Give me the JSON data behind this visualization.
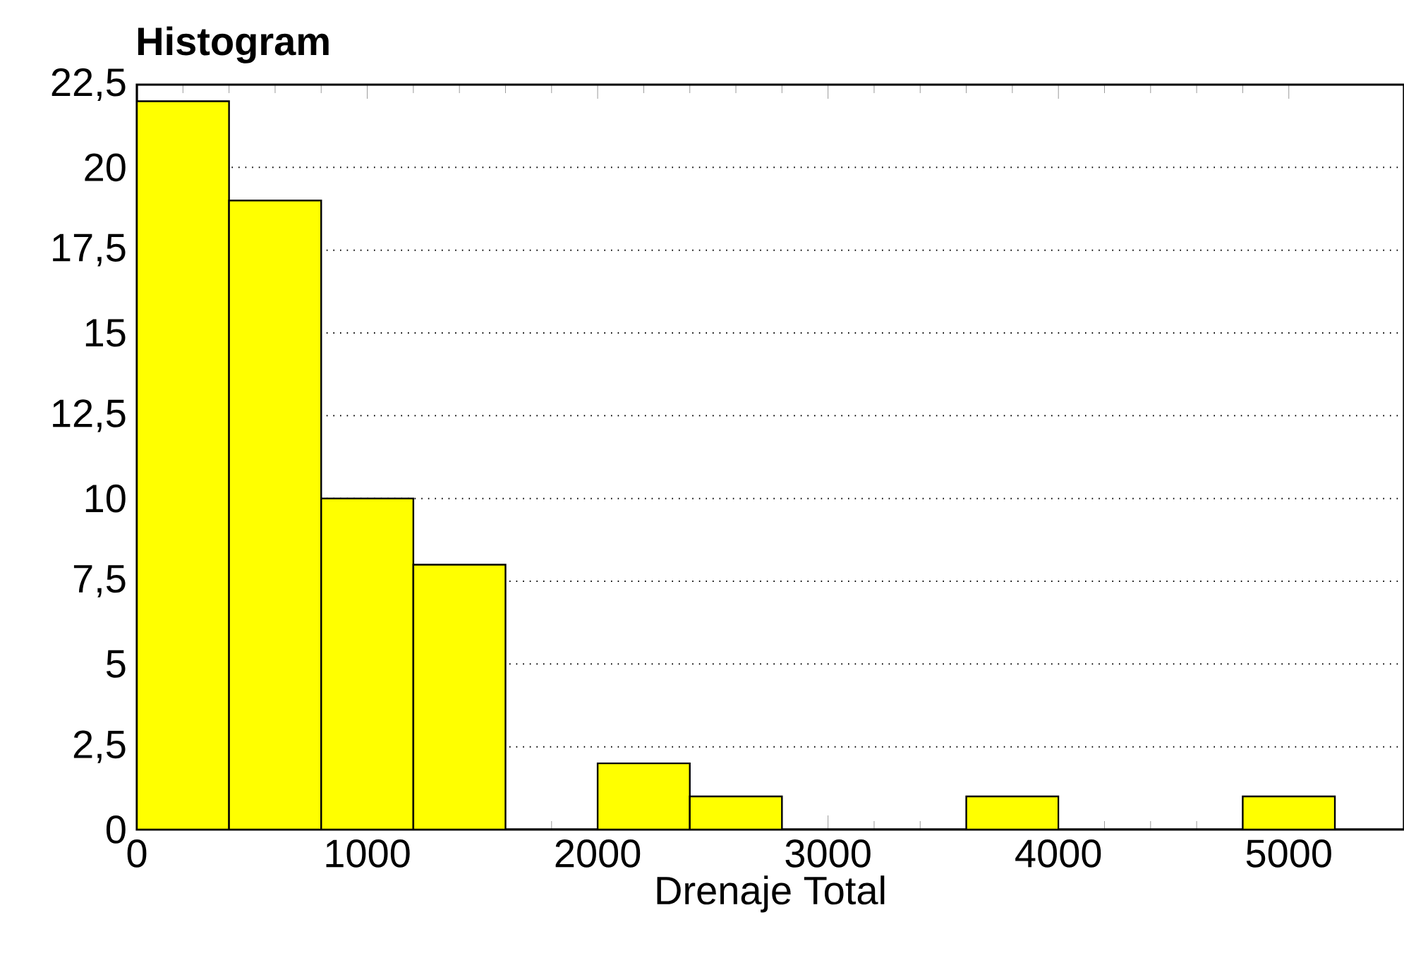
{
  "chart_data": {
    "type": "histogram",
    "title": "Histogram",
    "xlabel": "Drenaje Total",
    "bins": [
      0,
      400,
      800,
      1200,
      1600,
      2000,
      2400,
      2800,
      3200,
      3600,
      4000,
      4400,
      4800,
      5200
    ],
    "values": [
      22,
      19,
      10,
      8,
      0,
      2,
      1,
      0,
      0,
      1,
      0,
      0,
      1
    ],
    "color": "#ffff00",
    "xlim": [
      0,
      5500
    ],
    "xticks": [
      0,
      1000,
      2000,
      3000,
      4000,
      5000
    ],
    "ylim": [
      0,
      22.5
    ],
    "yticks": [
      0,
      {
        "value": 2.5,
        "label": "2,5"
      },
      5,
      {
        "value": 7.5,
        "label": "7,5"
      },
      10,
      {
        "value": 12.5,
        "label": "12,5"
      },
      15,
      {
        "value": 17.5,
        "label": "17,5"
      },
      20,
      {
        "value": 22.5,
        "label": "22,5"
      }
    ],
    "grid": "y"
  }
}
